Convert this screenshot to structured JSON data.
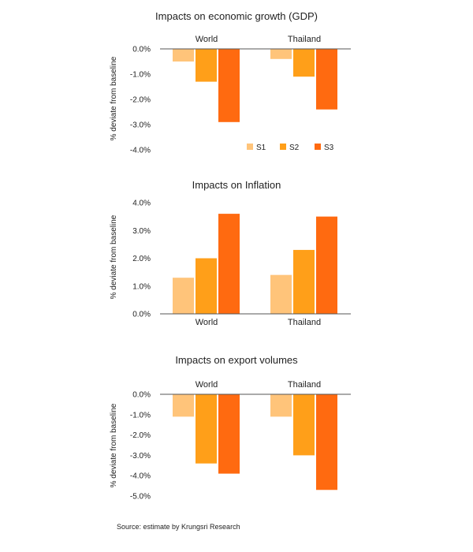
{
  "colors": {
    "S1": "#ffc47a",
    "S2": "#ff9f19",
    "S3": "#ff6a10"
  },
  "chart_data": [
    {
      "type": "bar",
      "title": "Impacts on economic growth (GDP)",
      "categories": [
        "World",
        "Thailand"
      ],
      "series": [
        {
          "name": "S1",
          "values": [
            -0.5,
            -0.4
          ]
        },
        {
          "name": "S2",
          "values": [
            -1.3,
            -1.1
          ]
        },
        {
          "name": "S3",
          "values": [
            -2.9,
            -2.4
          ]
        }
      ],
      "ylabel": "% deviate from baseline",
      "ylim": [
        -4,
        0
      ],
      "yticks": [
        "0.0%",
        "-1.0%",
        "-2.0%",
        "-3.0%",
        "-4.0%"
      ],
      "category_labels_position": "top",
      "legend": "bottom-right"
    },
    {
      "type": "bar",
      "title": "Impacts on Inflation",
      "categories": [
        "World",
        "Thailand"
      ],
      "series": [
        {
          "name": "S1",
          "values": [
            1.3,
            1.4
          ]
        },
        {
          "name": "S2",
          "values": [
            2.0,
            2.3
          ]
        },
        {
          "name": "S3",
          "values": [
            3.6,
            3.5
          ]
        }
      ],
      "ylabel": "% deviate from baseline",
      "ylim": [
        0,
        4
      ],
      "yticks": [
        "4.0%",
        "3.0%",
        "2.0%",
        "1.0%",
        "0.0%"
      ],
      "category_labels_position": "bottom"
    },
    {
      "type": "bar",
      "title": "Impacts on export volumes",
      "categories": [
        "World",
        "Thailand"
      ],
      "series": [
        {
          "name": "S1",
          "values": [
            -1.1,
            -1.1
          ]
        },
        {
          "name": "S2",
          "values": [
            -3.4,
            -3.0
          ]
        },
        {
          "name": "S3",
          "values": [
            -3.9,
            -4.7
          ]
        }
      ],
      "ylabel": "% deviate from baseline",
      "ylim": [
        -5,
        0
      ],
      "yticks": [
        "0.0%",
        "-1.0%",
        "-2.0%",
        "-3.0%",
        "-4.0%",
        "-5.0%"
      ],
      "category_labels_position": "top"
    }
  ],
  "source": "Source: estimate by Krungsri Research"
}
